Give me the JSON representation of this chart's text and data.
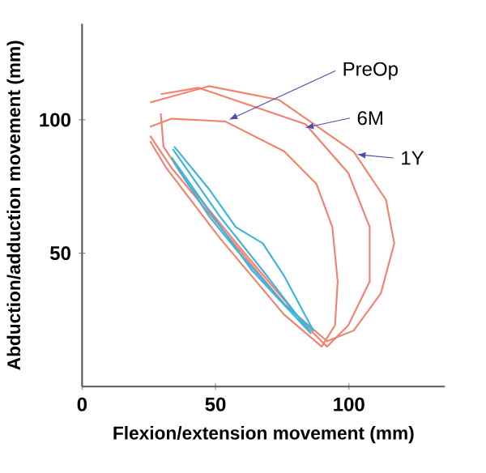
{
  "chart_data": {
    "type": "line",
    "xlabel": "Flexion/extension movement (mm)",
    "ylabel": "Abduction/adduction movement (mm)",
    "xlim": [
      0,
      136
    ],
    "ylim": [
      0,
      136
    ],
    "xticks": [
      {
        "value": 0,
        "label": "0"
      },
      50,
      100
    ],
    "yticks": [
      50,
      100
    ],
    "marker": "none",
    "line_style": "solid",
    "series": [
      {
        "color": "#f4806e",
        "x": [
          25.5,
          33.5,
          53.6,
          75.7,
          87.8,
          93.8,
          95.8,
          94.8,
          89.8,
          75.7,
          51.6,
          31.5,
          25.5
        ],
        "values": [
          97.4,
          100.4,
          99.4,
          88.2,
          76,
          59.8,
          39.4,
          23,
          15,
          27,
          55.7,
          82,
          92
        ]
      },
      {
        "color": "#f4806e",
        "x": [
          29.5,
          43.6,
          83.7,
          99.8,
          107.8,
          107.8,
          99.8,
          91.8,
          83.7,
          59.6,
          39.6,
          30.5,
          29.5
        ],
        "values": [
          109.6,
          112,
          98.4,
          80,
          59.8,
          39.4,
          23,
          15,
          23,
          51.6,
          76,
          90,
          102.4
        ]
      },
      {
        "color": "#f4806e",
        "x": [
          25.5,
          47.6,
          73.7,
          101.8,
          113.9,
          117,
          112,
          101.8,
          91.8,
          75.7,
          53.6,
          33.5,
          25.5
        ],
        "values": [
          106.5,
          112.6,
          107.5,
          88,
          70,
          53.7,
          35,
          21,
          17,
          31,
          57.7,
          82,
          94
        ]
      },
      {
        "color": "#3cb4e0",
        "x": [
          34.5,
          47.6,
          57.6,
          67.7,
          75.7,
          86.7,
          75.7,
          57.6,
          47.6,
          34.5
        ],
        "values": [
          90,
          74,
          59.8,
          53.7,
          41.5,
          21,
          31,
          51.6,
          63.8,
          84
        ]
      },
      {
        "color": "#3cb4e0",
        "x": [
          34,
          51.6,
          67.7,
          85.7,
          63.7,
          47.6,
          33.5
        ],
        "values": [
          89,
          63.8,
          43.5,
          20,
          43.5,
          65.9,
          86
        ]
      }
    ],
    "annotations": [
      {
        "text": "PreOp",
        "x": 55,
        "y": 100
      },
      {
        "text": "6M",
        "x": 83.5,
        "y": 97
      },
      {
        "text": "1Y",
        "x": 103,
        "y": 87
      }
    ]
  }
}
